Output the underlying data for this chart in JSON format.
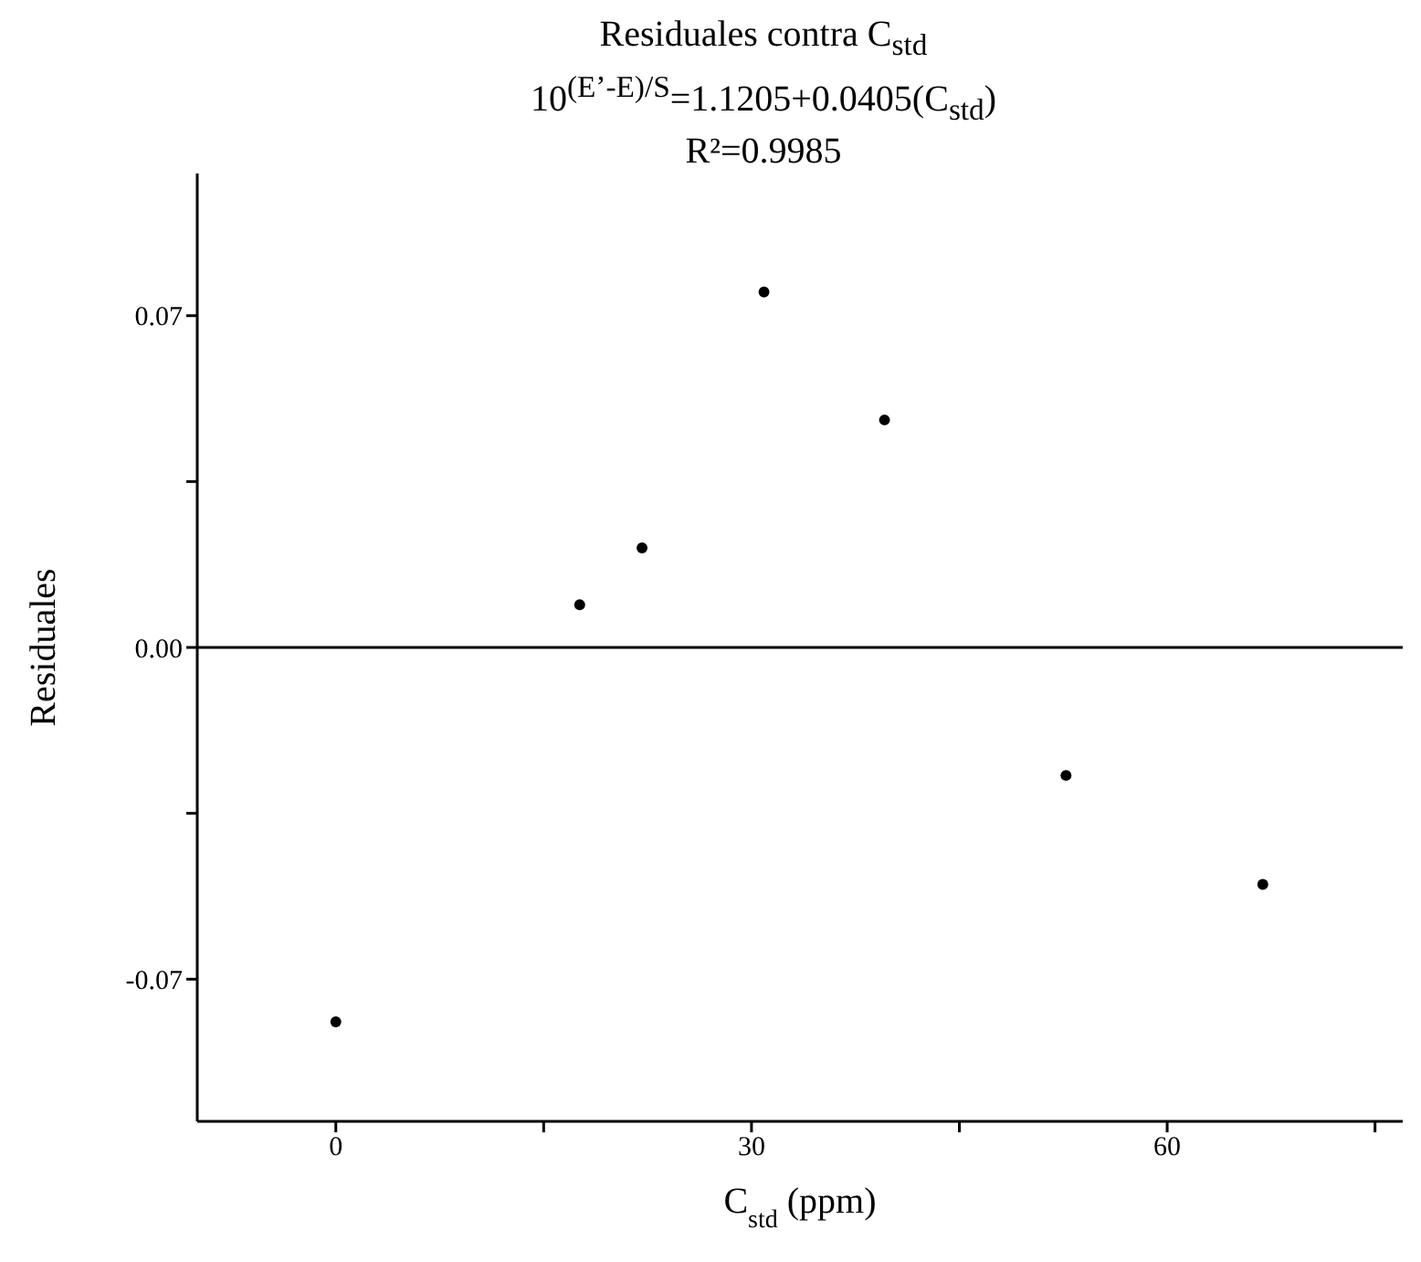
{
  "chart_data": {
    "type": "scatter",
    "title": "Residuales contra C$_{std}$",
    "subtitle": "10$^{(E’-E)/S}$=1.1205+0.0405(C$_{std}$)",
    "annotations": [
      "R²=0.9985"
    ],
    "xlabel": "C$_{std}$ (ppm)",
    "ylabel": "Residuales",
    "x": [
      0,
      17.6,
      22.1,
      30.9,
      39.6,
      52.7,
      66.9
    ],
    "series": [
      {
        "color": "#000000",
        "values": [
          -0.079,
          0.009,
          0.021,
          0.075,
          0.048,
          -0.027,
          -0.05
        ]
      }
    ],
    "xlim": [
      -10,
      77
    ],
    "xticks": [
      0,
      {
        "value": 15,
        "label": null
      },
      30,
      {
        "value": 45,
        "label": null
      },
      60,
      {
        "value": 75,
        "label": null
      }
    ],
    "ylim": [
      -0.1,
      0.1
    ],
    "yticks": [
      {
        "value": -0.07,
        "label": "-0.07"
      },
      {
        "value": -0.035,
        "label": null
      },
      {
        "value": 0,
        "label": "0.00"
      },
      {
        "value": 0.035,
        "label": null
      },
      {
        "value": 0.07,
        "label": "0.07"
      }
    ],
    "ref_lines": [
      {
        "axis": "y",
        "value": 0,
        "color": "#000000",
        "line_style": "solid"
      }
    ],
    "grid": false,
    "legend": false,
    "marker": "circle"
  }
}
